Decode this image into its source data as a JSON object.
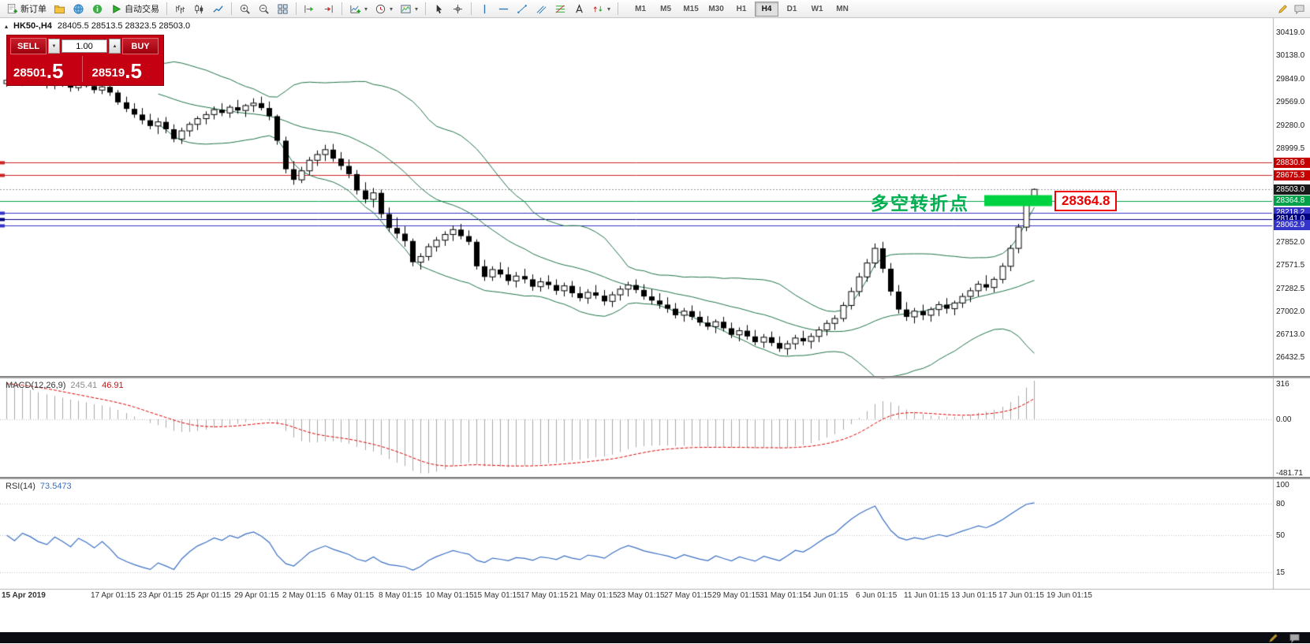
{
  "toolbar": {
    "dropdown_glyph": "▾",
    "items": [
      {
        "name": "new-order-button",
        "label": "新订单",
        "icon": "new-order-icon"
      },
      {
        "name": "charts-profile-button",
        "icon": "folder-icon"
      },
      {
        "name": "market-watch-button",
        "icon": "globe-icon"
      },
      {
        "name": "navigator-button",
        "icon": "info-icon"
      },
      {
        "name": "autotrade-button",
        "label": "自动交易",
        "icon": "play-icon"
      },
      {
        "type": "sep"
      },
      {
        "name": "bar-chart-button",
        "icon": "bars-icon"
      },
      {
        "name": "candle-chart-button",
        "icon": "candles-icon"
      },
      {
        "name": "line-chart-button",
        "icon": "line-icon"
      },
      {
        "type": "sep"
      },
      {
        "name": "zoom-in-button",
        "icon": "zoom-in-icon"
      },
      {
        "name": "zoom-out-button",
        "icon": "zoom-out-icon"
      },
      {
        "name": "tile-windows-button",
        "icon": "tile-icon"
      },
      {
        "type": "sep"
      },
      {
        "name": "auto-scroll-button",
        "icon": "auto-scroll-icon"
      },
      {
        "name": "chart-shift-button",
        "icon": "chart-shift-icon"
      },
      {
        "type": "sep"
      },
      {
        "name": "new-chart-button",
        "icon": "chart-plus-icon",
        "dropdown": true
      },
      {
        "name": "period-button",
        "icon": "clock-icon",
        "dropdown": true
      },
      {
        "name": "template-button",
        "icon": "template-icon",
        "dropdown": true
      },
      {
        "type": "sep"
      },
      {
        "name": "cursor-button",
        "icon": "cursor-icon"
      },
      {
        "name": "crosshair-button",
        "icon": "crosshair-icon"
      },
      {
        "type": "sep"
      },
      {
        "name": "vline-button",
        "icon": "vline-icon"
      },
      {
        "name": "hline-button",
        "icon": "hline-icon"
      },
      {
        "name": "trendline-button",
        "icon": "trendline-icon"
      },
      {
        "name": "channel-button",
        "icon": "channel-icon"
      },
      {
        "name": "fibonacci-button",
        "icon": "fibonacci-icon"
      },
      {
        "name": "text-button",
        "icon": "text-icon"
      },
      {
        "name": "arrows-button",
        "icon": "arrows-icon",
        "dropdown": true
      },
      {
        "type": "sep"
      }
    ],
    "timeframes": [
      {
        "label": "M1"
      },
      {
        "label": "M5"
      },
      {
        "label": "M15"
      },
      {
        "label": "M30"
      },
      {
        "label": "H1"
      },
      {
        "label": "H4",
        "active": true
      },
      {
        "label": "D1"
      },
      {
        "label": "W1"
      },
      {
        "label": "MN"
      }
    ],
    "right_icons": [
      {
        "name": "pencil-icon"
      },
      {
        "name": "chat-icon"
      }
    ]
  },
  "symbol_header": {
    "collapse_glyph": "▴",
    "symbol": "HK50-,H4",
    "ohlc": "28405.5 28513.5 28323.5 28503.0"
  },
  "trade_panel": {
    "sell_label": "SELL",
    "buy_label": "BUY",
    "volume": "1.00",
    "down_glyph": "▼",
    "up_glyph": "▲",
    "sell_price_main": "28501",
    "sell_price_frac": ".5",
    "buy_price_main": "28519",
    "buy_price_frac": ".5"
  },
  "annotation": {
    "text": "多空转折点",
    "price": 28364.8,
    "price_label": "28364.8",
    "text_color": "#00b050",
    "rect_color": "#00d341"
  },
  "panes": {
    "macd": {
      "name": "MACD(12,26,9)",
      "value_main": "245.41",
      "value_signal": "46.91",
      "axis": [
        {
          "t": "316",
          "v": 316
        },
        {
          "t": "0.00",
          "v": 0
        },
        {
          "t": "-481.71",
          "v": -481.71
        }
      ]
    },
    "rsi": {
      "name": "RSI(14)",
      "value": "73.5473",
      "axis": [
        {
          "t": "100",
          "v": 100
        },
        {
          "t": "80",
          "v": 80
        },
        {
          "t": "50",
          "v": 50
        },
        {
          "t": "15",
          "v": 15
        }
      ],
      "levels": [
        80,
        50,
        15
      ]
    }
  },
  "status_bar": {
    "icons": [
      {
        "name": "pencil-icon"
      },
      {
        "name": "chat-icon"
      }
    ]
  },
  "chart_data": {
    "type": "candlestick",
    "symbol": "HK50-",
    "period": "H4",
    "ylim": [
      26215,
      30612
    ],
    "y_ticks": [
      {
        "t": "30419.0",
        "p": 30419.0
      },
      {
        "t": "30138.0",
        "p": 30138.0
      },
      {
        "t": "29849.0",
        "p": 29849.0
      },
      {
        "t": "29569.0",
        "p": 29569.0
      },
      {
        "t": "29280.0",
        "p": 29280.0
      },
      {
        "t": "28999.5",
        "p": 28999.5
      },
      {
        "t": "27852.0",
        "p": 27852.0
      },
      {
        "t": "27571.5",
        "p": 27571.5
      },
      {
        "t": "27282.5",
        "p": 27282.5
      },
      {
        "t": "27002.0",
        "p": 27002.0
      },
      {
        "t": "26713.0",
        "p": 26713.0
      },
      {
        "t": "26432.5",
        "p": 26432.5
      }
    ],
    "price_tags": [
      {
        "t": "28830.6",
        "p": 28830.6,
        "bg": "#c40000"
      },
      {
        "t": "28675.3",
        "p": 28675.3,
        "bg": "#c40000"
      },
      {
        "t": "28503.0",
        "p": 28503.0,
        "bg": "#1a1a1a"
      },
      {
        "t": "28364.8",
        "p": 28364.8,
        "bg": "#00a14b"
      },
      {
        "t": "28218.2",
        "p": 28218.2,
        "bg": "#3434c8"
      },
      {
        "t": "28141.0",
        "p": 28141.0,
        "bg": "#000080"
      },
      {
        "t": "28062.9",
        "p": 28062.9,
        "bg": "#3434c8"
      }
    ],
    "hlines": [
      {
        "p": 28830.6,
        "color": "#cc2222",
        "style": "solid",
        "marker": true
      },
      {
        "p": 28675.3,
        "color": "#cc2222",
        "style": "solid",
        "marker": true
      },
      {
        "p": 28503.0,
        "color": "#9a9a9a",
        "style": "dot",
        "marker": false
      },
      {
        "p": 28364.8,
        "color": "#00a14b",
        "style": "solid",
        "marker": false
      },
      {
        "p": 28218.2,
        "color": "#3434c8",
        "style": "solid",
        "marker": true
      },
      {
        "p": 28141.0,
        "color": "#000080",
        "style": "solid",
        "marker": true
      },
      {
        "p": 28062.9,
        "color": "#3434c8",
        "style": "solid",
        "marker": true
      }
    ],
    "bollinger": {
      "period": 20,
      "deviation": 2,
      "color": "#1e7145"
    },
    "x_labels": [
      "15 Apr 2019",
      "17 Apr 01:15",
      "23 Apr 01:15",
      "25 Apr 01:15",
      "29 Apr 01:15",
      "2 May 01:15",
      "6 May 01:15",
      "8 May 01:15",
      "10 May 01:15",
      "15 May 01:15",
      "17 May 01:15",
      "21 May 01:15",
      "23 May 01:15",
      "27 May 01:15",
      "29 May 01:15",
      "31 May 01:15",
      "4 Jun 01:15",
      "6 Jun 01:15",
      "11 Jun 01:15",
      "13 Jun 01:15",
      "17 Jun 01:15",
      "19 Jun 01:15"
    ],
    "ohlc": [
      [
        29800,
        29870,
        29760,
        29840
      ],
      [
        29840,
        29880,
        29790,
        29810
      ],
      [
        29810,
        29860,
        29770,
        29850
      ],
      [
        29850,
        29900,
        29800,
        29830
      ],
      [
        29830,
        29880,
        29780,
        29800
      ],
      [
        29800,
        29850,
        29740,
        29780
      ],
      [
        29780,
        29840,
        29730,
        29820
      ],
      [
        29820,
        29870,
        29760,
        29790
      ],
      [
        29790,
        29830,
        29700,
        29750
      ],
      [
        29750,
        29820,
        29710,
        29800
      ],
      [
        29800,
        29850,
        29750,
        29770
      ],
      [
        29770,
        29810,
        29680,
        29720
      ],
      [
        29720,
        29790,
        29670,
        29760
      ],
      [
        29760,
        29800,
        29650,
        29690
      ],
      [
        29690,
        29720,
        29540,
        29570
      ],
      [
        29570,
        29640,
        29450,
        29490
      ],
      [
        29490,
        29560,
        29380,
        29420
      ],
      [
        29420,
        29500,
        29300,
        29350
      ],
      [
        29350,
        29430,
        29240,
        29280
      ],
      [
        29280,
        29380,
        29180,
        29330
      ],
      [
        29330,
        29390,
        29190,
        29240
      ],
      [
        29240,
        29300,
        29080,
        29120
      ],
      [
        29120,
        29260,
        29060,
        29220
      ],
      [
        29220,
        29330,
        29150,
        29300
      ],
      [
        29300,
        29400,
        29230,
        29370
      ],
      [
        29370,
        29460,
        29300,
        29420
      ],
      [
        29420,
        29520,
        29360,
        29480
      ],
      [
        29480,
        29560,
        29400,
        29440
      ],
      [
        29440,
        29540,
        29380,
        29510
      ],
      [
        29510,
        29600,
        29430,
        29470
      ],
      [
        29470,
        29550,
        29390,
        29530
      ],
      [
        29530,
        29620,
        29450,
        29560
      ],
      [
        29560,
        29640,
        29470,
        29500
      ],
      [
        29500,
        29580,
        29350,
        29400
      ],
      [
        29400,
        29420,
        29050,
        29100
      ],
      [
        29100,
        29150,
        28700,
        28750
      ],
      [
        28750,
        28850,
        28560,
        28620
      ],
      [
        28620,
        28780,
        28580,
        28730
      ],
      [
        28730,
        28900,
        28680,
        28860
      ],
      [
        28860,
        28980,
        28790,
        28930
      ],
      [
        28930,
        29050,
        28850,
        28990
      ],
      [
        28990,
        29060,
        28840,
        28880
      ],
      [
        28880,
        28960,
        28740,
        28790
      ],
      [
        28790,
        28870,
        28640,
        28690
      ],
      [
        28690,
        28740,
        28440,
        28490
      ],
      [
        28490,
        28590,
        28330,
        28380
      ],
      [
        28380,
        28520,
        28280,
        28460
      ],
      [
        28460,
        28500,
        28150,
        28200
      ],
      [
        28200,
        28280,
        27980,
        28030
      ],
      [
        28030,
        28160,
        27900,
        27960
      ],
      [
        27960,
        28050,
        27800,
        27870
      ],
      [
        27870,
        27900,
        27560,
        27610
      ],
      [
        27610,
        27720,
        27520,
        27680
      ],
      [
        27680,
        27840,
        27630,
        27800
      ],
      [
        27800,
        27920,
        27740,
        27880
      ],
      [
        27880,
        27990,
        27810,
        27950
      ],
      [
        27950,
        28060,
        27870,
        28010
      ],
      [
        28010,
        28080,
        27890,
        27930
      ],
      [
        27930,
        28000,
        27820,
        27860
      ],
      [
        27860,
        27890,
        27520,
        27560
      ],
      [
        27560,
        27640,
        27380,
        27430
      ],
      [
        27430,
        27560,
        27380,
        27520
      ],
      [
        27520,
        27610,
        27420,
        27460
      ],
      [
        27460,
        27550,
        27330,
        27380
      ],
      [
        27380,
        27490,
        27300,
        27440
      ],
      [
        27440,
        27530,
        27350,
        27400
      ],
      [
        27400,
        27460,
        27260,
        27310
      ],
      [
        27310,
        27420,
        27250,
        27370
      ],
      [
        27370,
        27450,
        27280,
        27330
      ],
      [
        27330,
        27400,
        27210,
        27260
      ],
      [
        27260,
        27360,
        27190,
        27320
      ],
      [
        27320,
        27380,
        27180,
        27230
      ],
      [
        27230,
        27310,
        27130,
        27170
      ],
      [
        27170,
        27280,
        27100,
        27240
      ],
      [
        27240,
        27330,
        27160,
        27200
      ],
      [
        27200,
        27270,
        27080,
        27130
      ],
      [
        27130,
        27250,
        27060,
        27210
      ],
      [
        27210,
        27320,
        27140,
        27280
      ],
      [
        27280,
        27370,
        27190,
        27330
      ],
      [
        27330,
        27400,
        27230,
        27270
      ],
      [
        27270,
        27340,
        27150,
        27190
      ],
      [
        27190,
        27280,
        27090,
        27140
      ],
      [
        27140,
        27230,
        27040,
        27090
      ],
      [
        27090,
        27180,
        26990,
        27040
      ],
      [
        27040,
        27110,
        26920,
        26960
      ],
      [
        26960,
        27050,
        26880,
        27010
      ],
      [
        27010,
        27080,
        26900,
        26940
      ],
      [
        26940,
        27010,
        26830,
        26870
      ],
      [
        26870,
        26950,
        26780,
        26820
      ],
      [
        26820,
        26910,
        26740,
        26880
      ],
      [
        26880,
        26940,
        26760,
        26800
      ],
      [
        26800,
        26870,
        26680,
        26720
      ],
      [
        26720,
        26810,
        26640,
        26770
      ],
      [
        26770,
        26840,
        26660,
        26700
      ],
      [
        26700,
        26780,
        26590,
        26630
      ],
      [
        26630,
        26730,
        26560,
        26690
      ],
      [
        26690,
        26760,
        26580,
        26620
      ],
      [
        26620,
        26700,
        26510,
        26550
      ],
      [
        26550,
        26650,
        26470,
        26610
      ],
      [
        26610,
        26720,
        26540,
        26680
      ],
      [
        26680,
        26770,
        26590,
        26640
      ],
      [
        26640,
        26740,
        26550,
        26700
      ],
      [
        26700,
        26820,
        26630,
        26780
      ],
      [
        26780,
        26900,
        26710,
        26860
      ],
      [
        26860,
        26960,
        26780,
        26920
      ],
      [
        26920,
        27120,
        26880,
        27080
      ],
      [
        27080,
        27300,
        27030,
        27250
      ],
      [
        27250,
        27480,
        27190,
        27430
      ],
      [
        27430,
        27650,
        27370,
        27600
      ],
      [
        27600,
        27840,
        27540,
        27780
      ],
      [
        27780,
        27860,
        27480,
        27530
      ],
      [
        27530,
        27600,
        27200,
        27250
      ],
      [
        27250,
        27330,
        26980,
        27030
      ],
      [
        27030,
        27120,
        26890,
        26940
      ],
      [
        26940,
        27050,
        26860,
        27010
      ],
      [
        27010,
        27090,
        26900,
        26960
      ],
      [
        26960,
        27060,
        26880,
        27030
      ],
      [
        27030,
        27130,
        26950,
        27090
      ],
      [
        27090,
        27170,
        26980,
        27040
      ],
      [
        27040,
        27140,
        26960,
        27110
      ],
      [
        27110,
        27230,
        27050,
        27190
      ],
      [
        27190,
        27300,
        27120,
        27260
      ],
      [
        27260,
        27380,
        27190,
        27340
      ],
      [
        27340,
        27450,
        27260,
        27300
      ],
      [
        27300,
        27430,
        27240,
        27400
      ],
      [
        27400,
        27600,
        27350,
        27560
      ],
      [
        27560,
        27820,
        27500,
        27780
      ],
      [
        27780,
        28080,
        27720,
        28040
      ],
      [
        28040,
        28420,
        27990,
        28380
      ],
      [
        28405.5,
        28513.5,
        28323.5,
        28503.0
      ]
    ]
  }
}
